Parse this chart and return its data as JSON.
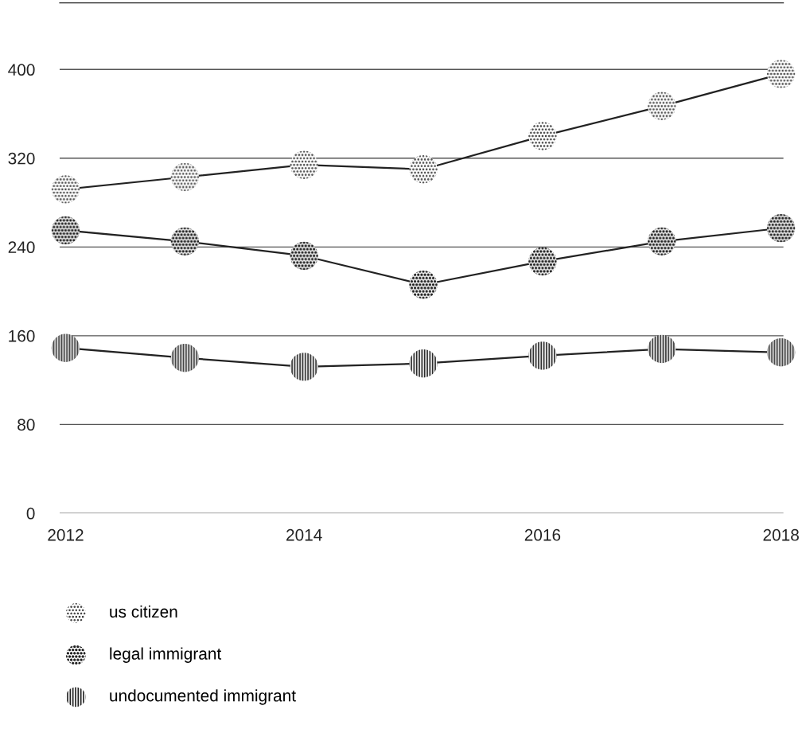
{
  "chart_data": {
    "type": "line",
    "x": [
      2012,
      2013,
      2014,
      2015,
      2016,
      2017,
      2018
    ],
    "series": [
      {
        "name": "us citizen",
        "color": "#222222",
        "values": [
          292,
          303,
          314,
          310,
          340,
          367,
          396
        ]
      },
      {
        "name": "legal immigrant",
        "color": "#222222",
        "values": [
          255,
          245,
          232,
          206,
          227,
          245,
          257
        ]
      },
      {
        "name": "undocumented immigrant",
        "color": "#222222",
        "values": [
          149,
          140,
          132,
          135,
          142,
          148,
          145
        ]
      }
    ],
    "xlim": [
      2011.95,
      2018.02
    ],
    "xticks": [
      2012,
      2014,
      2016,
      2018
    ],
    "ylim": [
      0,
      460
    ],
    "yticks": [
      0,
      80,
      160,
      240,
      320,
      400
    ],
    "grid": "y",
    "legend": "bottom left",
    "marker": "circle",
    "line_style": "solid"
  }
}
